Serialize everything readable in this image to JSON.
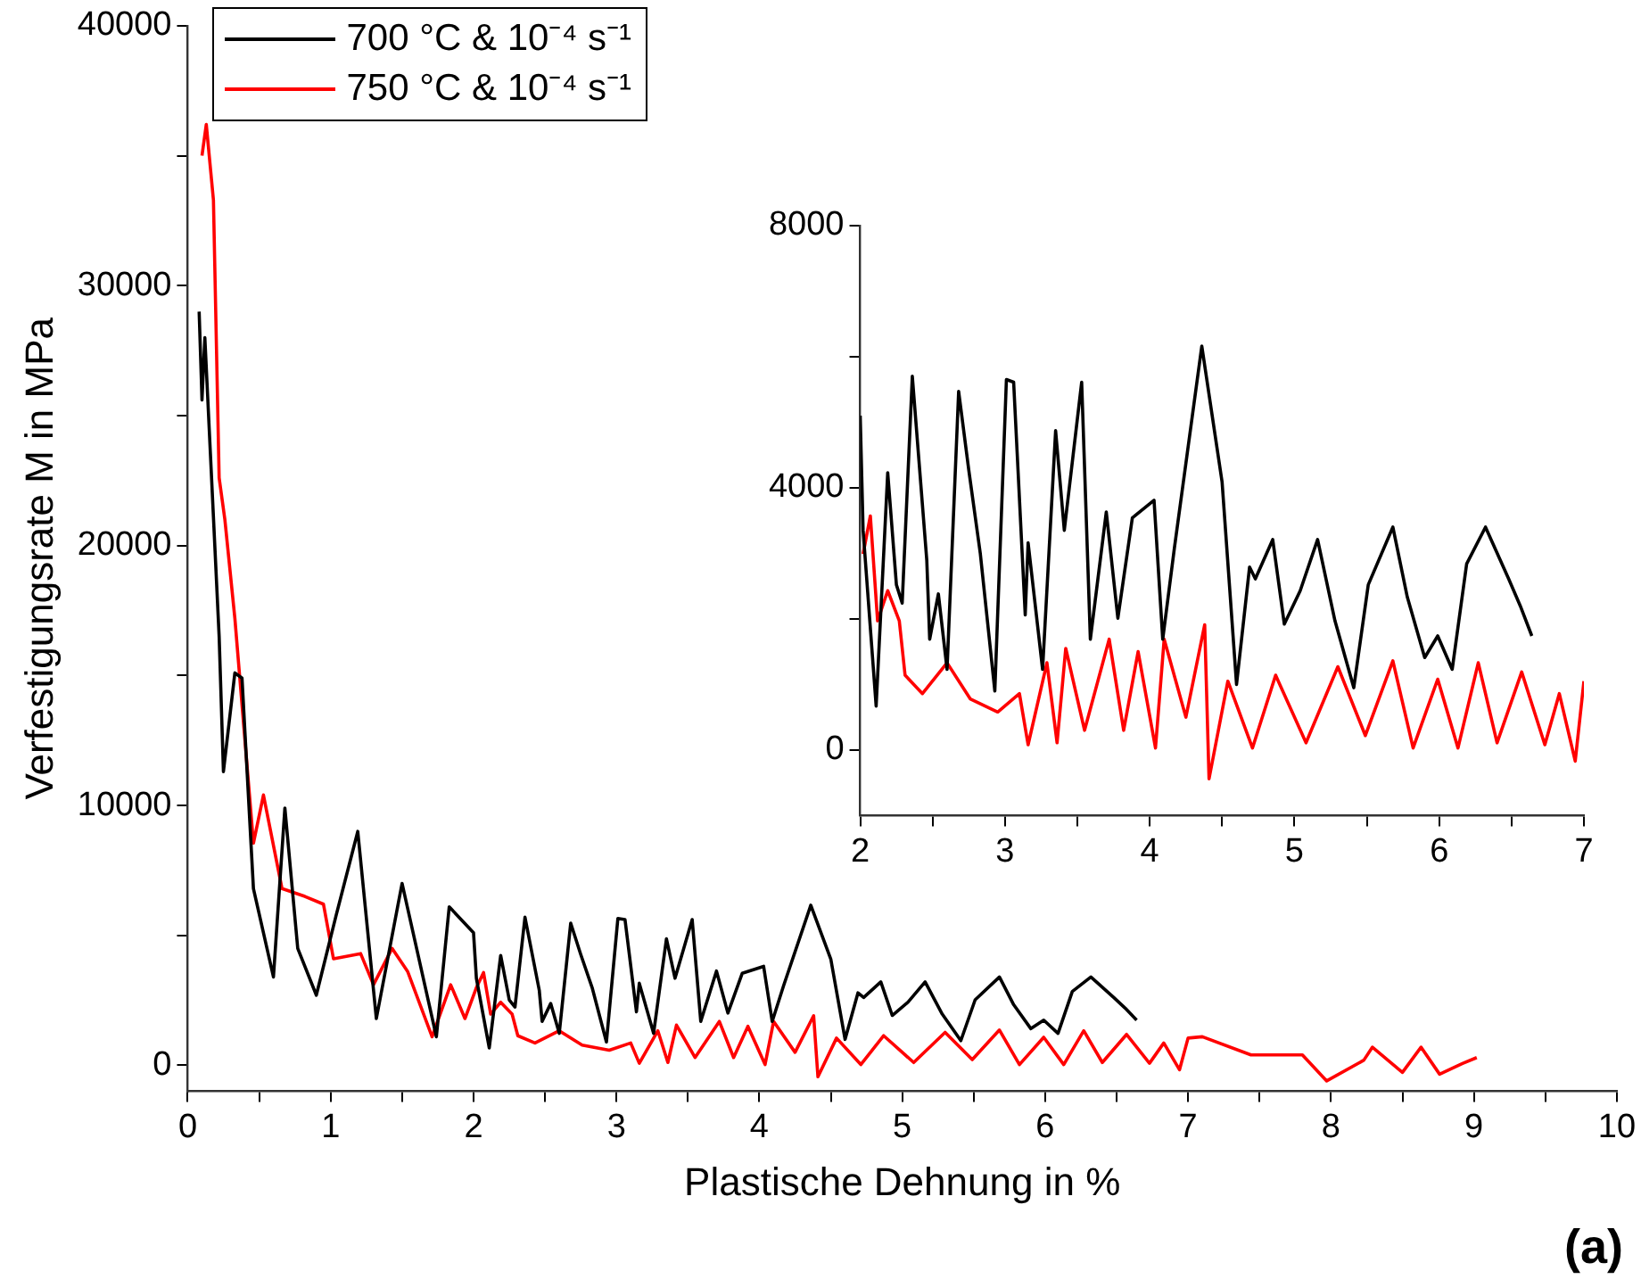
{
  "chart_data": [
    {
      "type": "line",
      "xlabel": "Plastische Dehnung in %",
      "ylabel": "Verfestigungsrate M in MPa",
      "xlim": [
        0,
        10
      ],
      "ylim": [
        -1000,
        40000
      ],
      "xticks": [
        0,
        {
          "value": 0.5,
          "label": null
        },
        1,
        {
          "value": 1.5,
          "label": null
        },
        2,
        {
          "value": 2.5,
          "label": null
        },
        3,
        {
          "value": 3.5,
          "label": null
        },
        4,
        {
          "value": 4.5,
          "label": null
        },
        5,
        {
          "value": 5.5,
          "label": null
        },
        6,
        {
          "value": 6.5,
          "label": null
        },
        7,
        {
          "value": 7.5,
          "label": null
        },
        8,
        {
          "value": 8.5,
          "label": null
        },
        9,
        {
          "value": 9.5,
          "label": null
        },
        10
      ],
      "yticks": [
        0,
        {
          "value": 5000,
          "label": null
        },
        10000,
        {
          "value": 15000,
          "label": null
        },
        20000,
        {
          "value": 25000,
          "label": null
        },
        30000,
        {
          "value": 35000,
          "label": null
        },
        40000
      ],
      "grid": false,
      "legend": "top left",
      "marker": "none",
      "line_style": "solid",
      "annotations": [
        "(a)"
      ],
      "series": [
        {
          "name": "700 °C & 10⁻⁴ s⁻¹",
          "color": "#000000",
          "x": [
            0.08,
            0.1,
            0.12,
            0.22,
            0.25,
            0.33,
            0.38,
            0.46,
            0.6,
            0.68,
            0.77,
            0.9,
            1.04,
            1.19,
            1.32,
            1.5,
            1.74,
            1.83,
            2.0,
            2.02,
            2.11,
            2.19,
            2.25,
            2.29,
            2.36,
            2.46,
            2.48,
            2.54,
            2.6,
            2.68,
            2.75,
            2.83,
            2.93,
            3.01,
            3.06,
            3.14,
            3.16,
            3.26,
            3.35,
            3.41,
            3.53,
            3.59,
            3.7,
            3.78,
            3.88,
            4.03,
            4.09,
            4.17,
            4.36,
            4.5,
            4.6,
            4.69,
            4.73,
            4.85,
            4.93,
            5.04,
            5.16,
            5.28,
            5.41,
            5.51,
            5.68,
            5.78,
            5.9,
            5.99,
            6.09,
            6.19,
            6.32,
            6.48,
            6.56,
            6.64
          ],
          "values": [
            29000,
            25600,
            28000,
            16500,
            11300,
            15100,
            14900,
            6800,
            3400,
            9900,
            4500,
            2700,
            5800,
            9000,
            1800,
            7000,
            1100,
            6100,
            5100,
            3350,
            670,
            4230,
            2520,
            2240,
            5700,
            2890,
            1690,
            2380,
            1230,
            5470,
            4270,
            2990,
            900,
            5650,
            5610,
            2060,
            3160,
            1230,
            4870,
            3350,
            5610,
            1690,
            3630,
            2010,
            3540,
            3810,
            1690,
            3070,
            6160,
            4090,
            1000,
            2790,
            2610,
            3210,
            1920,
            2430,
            3210,
            1970,
            950,
            2520,
            3400,
            2330,
            1410,
            1740,
            1230,
            2840,
            3400,
            2610,
            2200,
            1740
          ]
        },
        {
          "name": "750 °C & 10⁻⁴ s⁻¹",
          "color": "#ff0000",
          "x": [
            0.1,
            0.13,
            0.18,
            0.22,
            0.26,
            0.33,
            0.46,
            0.53,
            0.66,
            0.82,
            0.95,
            1.02,
            1.21,
            1.3,
            1.43,
            1.54,
            1.71,
            1.84,
            1.94,
            2.02,
            2.07,
            2.12,
            2.19,
            2.27,
            2.31,
            2.43,
            2.6,
            2.76,
            2.95,
            3.1,
            3.16,
            3.29,
            3.36,
            3.42,
            3.55,
            3.72,
            3.82,
            3.92,
            4.04,
            4.1,
            4.25,
            4.38,
            4.41,
            4.54,
            4.71,
            4.87,
            5.08,
            5.3,
            5.49,
            5.68,
            5.82,
            5.99,
            6.13,
            6.27,
            6.4,
            6.57,
            6.73,
            6.83,
            6.94,
            7.0,
            7.1,
            7.44,
            7.8,
            7.97,
            8.23,
            8.29,
            8.5,
            8.63,
            8.76,
            8.92,
            9.02
          ],
          "values": [
            35000,
            36200,
            33300,
            22600,
            21000,
            17200,
            8550,
            10400,
            6800,
            6500,
            6200,
            4100,
            4300,
            3100,
            4500,
            3600,
            1100,
            3100,
            1800,
            2990,
            3570,
            1970,
            2430,
            1970,
            1140,
            860,
            1330,
            780,
            580,
            860,
            80,
            1330,
            110,
            1550,
            300,
            1690,
            300,
            1500,
            30,
            1690,
            500,
            1910,
            -440,
            1050,
            30,
            1140,
            110,
            1270,
            220,
            1360,
            30,
            1080,
            30,
            1330,
            110,
            1190,
            80,
            860,
            -170,
            1050,
            1100,
            400,
            400,
            -600,
            200,
            700,
            -270,
            700,
            -340,
            70,
            300
          ]
        }
      ]
    },
    {
      "type": "line",
      "xlim": [
        2,
        7
      ],
      "ylim": [
        -1000,
        8000
      ],
      "xticks": [
        2,
        {
          "value": 2.5,
          "label": null
        },
        3,
        {
          "value": 3.5,
          "label": null
        },
        4,
        {
          "value": 4.5,
          "label": null
        },
        5,
        {
          "value": 5.5,
          "label": null
        },
        6,
        {
          "value": 6.5,
          "label": null
        },
        7
      ],
      "yticks": [
        0,
        {
          "value": 2000,
          "label": null
        },
        4000,
        {
          "value": 6000,
          "label": null
        },
        8000
      ],
      "grid": false,
      "marker": "none",
      "line_style": "solid",
      "series": [
        {
          "color": "#000000",
          "x": [
            2.0,
            2.02,
            2.11,
            2.19,
            2.25,
            2.29,
            2.36,
            2.46,
            2.48,
            2.54,
            2.6,
            2.68,
            2.75,
            2.83,
            2.93,
            3.01,
            3.06,
            3.14,
            3.16,
            3.26,
            3.35,
            3.41,
            3.53,
            3.59,
            3.7,
            3.78,
            3.88,
            4.03,
            4.09,
            4.17,
            4.36,
            4.5,
            4.6,
            4.69,
            4.73,
            4.85,
            4.93,
            5.04,
            5.16,
            5.28,
            5.41,
            5.51,
            5.68,
            5.78,
            5.9,
            5.99,
            6.09,
            6.19,
            6.32,
            6.48,
            6.56,
            6.64
          ],
          "values": [
            5100,
            3350,
            670,
            4230,
            2520,
            2240,
            5700,
            2890,
            1690,
            2380,
            1230,
            5470,
            4270,
            2990,
            900,
            5650,
            5610,
            2060,
            3160,
            1230,
            4870,
            3350,
            5610,
            1690,
            3630,
            2010,
            3540,
            3810,
            1690,
            3070,
            6160,
            4090,
            1000,
            2790,
            2610,
            3210,
            1920,
            2430,
            3210,
            1970,
            950,
            2520,
            3400,
            2330,
            1410,
            1740,
            1230,
            2840,
            3400,
            2610,
            2200,
            1740
          ]
        },
        {
          "color": "#ff0000",
          "x": [
            2.02,
            2.07,
            2.12,
            2.19,
            2.27,
            2.31,
            2.43,
            2.6,
            2.76,
            2.95,
            3.1,
            3.16,
            3.29,
            3.36,
            3.42,
            3.55,
            3.72,
            3.82,
            3.92,
            4.04,
            4.1,
            4.25,
            4.38,
            4.41,
            4.54,
            4.71,
            4.87,
            5.08,
            5.3,
            5.49,
            5.68,
            5.82,
            5.99,
            6.13,
            6.27,
            6.4,
            6.57,
            6.73,
            6.83,
            6.94,
            7.0
          ],
          "values": [
            2990,
            3570,
            1970,
            2430,
            1970,
            1140,
            860,
            1330,
            780,
            580,
            860,
            80,
            1330,
            110,
            1550,
            300,
            1690,
            300,
            1500,
            30,
            1690,
            500,
            1910,
            -440,
            1050,
            30,
            1140,
            110,
            1270,
            220,
            1360,
            30,
            1080,
            30,
            1330,
            110,
            1190,
            80,
            860,
            -170,
            1050
          ]
        }
      ]
    }
  ]
}
